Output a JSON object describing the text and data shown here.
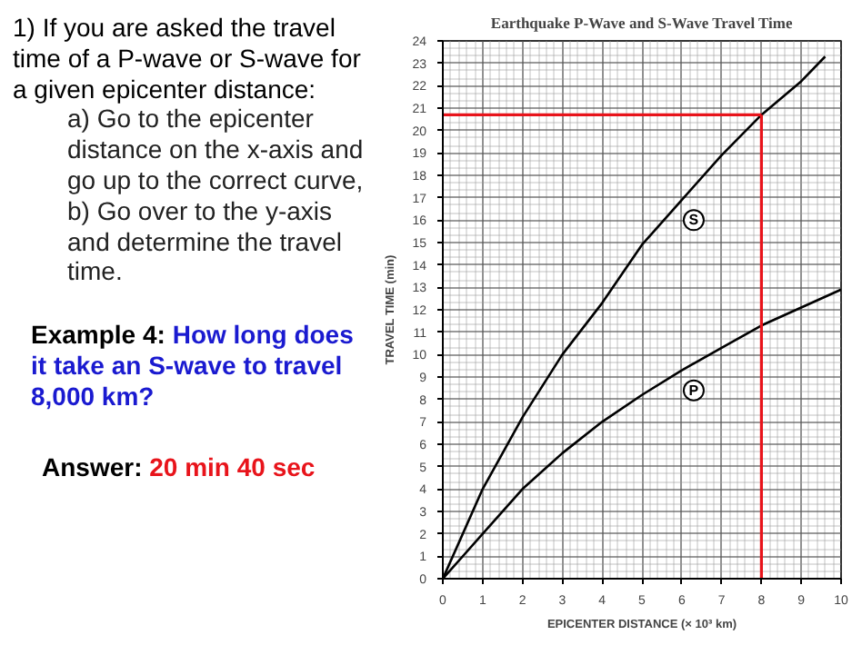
{
  "chart_data": {
    "type": "line",
    "title": "Earthquake P-Wave and S-Wave Travel Time",
    "xlabel": "EPICENTER DISTANCE (× 10³ km)",
    "ylabel": "TRAVEL TIME (min)",
    "series": [
      {
        "name": "S",
        "color": "#000000",
        "x": [
          0,
          1,
          2,
          3,
          4,
          5,
          6,
          7,
          8,
          9,
          9.6
        ],
        "values": [
          0,
          4.0,
          7.2,
          10.0,
          12.3,
          14.9,
          16.9,
          18.9,
          20.7,
          22.2,
          23.3
        ]
      },
      {
        "name": "P",
        "color": "#000000",
        "x": [
          0,
          1,
          2,
          3,
          4,
          5,
          6,
          7,
          8,
          9,
          10
        ],
        "values": [
          0,
          2.0,
          4.0,
          5.6,
          7.0,
          8.2,
          9.3,
          10.3,
          11.3,
          12.1,
          12.9
        ]
      }
    ],
    "xlim": [
      0,
      10
    ],
    "ylim": [
      0,
      24
    ],
    "xticks": [
      0,
      1,
      2,
      3,
      4,
      5,
      6,
      7,
      8,
      9,
      10
    ],
    "yticks": [
      0,
      1,
      2,
      3,
      4,
      5,
      6,
      7,
      8,
      9,
      10,
      11,
      12,
      13,
      14,
      15,
      16,
      17,
      18,
      19,
      20,
      21,
      22,
      23,
      24
    ],
    "grid": true,
    "marker": "none",
    "line_style": "solid",
    "ref_lines": [
      {
        "axis": "x",
        "value": 8,
        "color": "#e8141b"
      },
      {
        "axis": "y",
        "value": 20.7,
        "color": "#e8141b"
      }
    ],
    "annotations": [
      "1) If you are asked the travel time of a P-wave or S-wave for a given epicenter distance:",
      "a) Go to the epicenter distance on the x-axis and go up to the correct curve,",
      "b) Go over to the y-axis and determine the travel time.",
      "Example 4:",
      "How long does it take an S-wave to travel 8,000 km?",
      "Answer:",
      "20 min 40 sec"
    ]
  }
}
